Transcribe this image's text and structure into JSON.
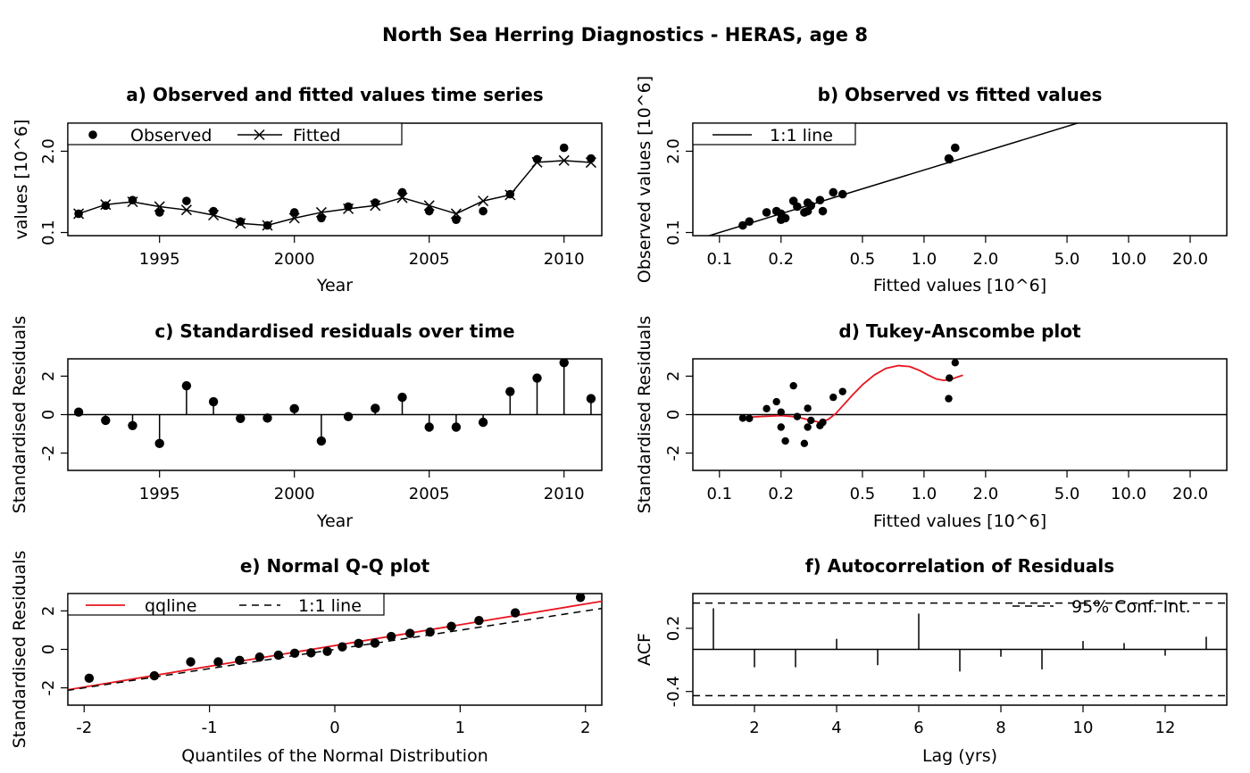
{
  "figure_title": "North Sea Herring Diagnostics - HERAS, age 8",
  "colors": {
    "red": "#e8141e",
    "black": "#000000"
  },
  "chart_data": [
    {
      "id": "a",
      "type": "line",
      "title": "a) Observed and fitted values time series",
      "xlabel": "Year",
      "ylabel": "values [10^6]",
      "xlim": [
        1991.6,
        2011.4
      ],
      "ylim_log10": [
        -1.05,
        0.75
      ],
      "y_scale": "log",
      "x_ticks": [
        1995,
        2000,
        2005,
        2010
      ],
      "x_tick_labels": [
        "1995",
        "2000",
        "2005",
        "2010"
      ],
      "y_ticks": [
        0.1,
        2.0
      ],
      "y_tick_labels": [
        "0.1",
        "2.0"
      ],
      "legend": {
        "position": "top-left",
        "entries": [
          "Observed",
          "Fitted"
        ]
      },
      "x": [
        1992,
        1993,
        1994,
        1995,
        1996,
        1997,
        1998,
        1999,
        2000,
        2001,
        2002,
        2003,
        2004,
        2005,
        2006,
        2007,
        2008,
        2009,
        2010,
        2011
      ],
      "series": [
        {
          "name": "Observed",
          "marker": "dot",
          "values": [
            0.2,
            0.27,
            0.33,
            0.21,
            0.32,
            0.22,
            0.15,
            0.13,
            0.21,
            0.17,
            0.26,
            0.3,
            0.44,
            0.22,
            0.16,
            0.22,
            0.41,
            1.49,
            2.27,
            1.53
          ]
        },
        {
          "name": "Fitted",
          "marker": "x",
          "values": [
            0.2,
            0.28,
            0.31,
            0.26,
            0.23,
            0.19,
            0.14,
            0.13,
            0.17,
            0.21,
            0.24,
            0.27,
            0.36,
            0.27,
            0.2,
            0.32,
            0.4,
            1.33,
            1.42,
            1.32
          ]
        }
      ]
    },
    {
      "id": "b",
      "type": "scatter",
      "title": "b) Observed vs fitted values",
      "xlabel": "Fitted values [10^6]",
      "ylabel": "Observed values [10^6]",
      "x_scale": "log",
      "y_scale": "log",
      "xlim_log10": [
        -1.13,
        1.48
      ],
      "ylim_log10": [
        -1.05,
        0.75
      ],
      "x_ticks": [
        0.1,
        0.2,
        0.5,
        1.0,
        2.0,
        5.0,
        10.0,
        20.0
      ],
      "x_tick_labels": [
        "0.1",
        "0.2",
        "0.5",
        "1.0",
        "2.0",
        "5.0",
        "10.0",
        "20.0"
      ],
      "y_ticks": [
        0.1,
        2.0
      ],
      "y_tick_labels": [
        "0.1",
        "2.0"
      ],
      "legend": {
        "position": "top-left",
        "entries": [
          "1:1 line"
        ]
      },
      "x": [
        0.2,
        0.28,
        0.31,
        0.26,
        0.23,
        0.19,
        0.14,
        0.13,
        0.17,
        0.21,
        0.24,
        0.27,
        0.36,
        0.27,
        0.2,
        0.32,
        0.4,
        1.33,
        1.42,
        1.32
      ],
      "y": [
        0.2,
        0.27,
        0.33,
        0.21,
        0.32,
        0.22,
        0.15,
        0.13,
        0.21,
        0.17,
        0.26,
        0.3,
        0.44,
        0.22,
        0.16,
        0.22,
        0.41,
        1.49,
        2.27,
        1.53
      ]
    },
    {
      "id": "c",
      "type": "bar",
      "title": "c) Standardised residuals over time",
      "xlabel": "Year",
      "ylabel": "Standardised Residuals",
      "xlim": [
        1991.6,
        2011.4
      ],
      "ylim": [
        -2.9,
        2.9
      ],
      "x_ticks": [
        1995,
        2000,
        2005,
        2010
      ],
      "x_tick_labels": [
        "1995",
        "2000",
        "2005",
        "2010"
      ],
      "y_ticks": [
        -2,
        0,
        2
      ],
      "y_tick_labels": [
        "-2",
        "0",
        "2"
      ],
      "x": [
        1992,
        1993,
        1994,
        1995,
        1996,
        1997,
        1998,
        1999,
        2000,
        2001,
        2002,
        2003,
        2004,
        2005,
        2006,
        2007,
        2008,
        2009,
        2010,
        2011
      ],
      "values": [
        0.13,
        -0.3,
        -0.57,
        -1.5,
        1.5,
        0.67,
        -0.2,
        -0.18,
        0.31,
        -1.37,
        -0.1,
        0.33,
        0.9,
        -0.65,
        -0.65,
        -0.4,
        1.2,
        1.9,
        2.7,
        0.83
      ]
    },
    {
      "id": "d",
      "type": "scatter",
      "title": "d) Tukey-Anscombe plot",
      "xlabel": "Fitted values [10^6]",
      "ylabel": "Standardised Residuals",
      "x_scale": "log",
      "xlim_log10": [
        -1.13,
        1.48
      ],
      "ylim": [
        -2.9,
        2.9
      ],
      "x_ticks": [
        0.1,
        0.2,
        0.5,
        1.0,
        2.0,
        5.0,
        10.0,
        20.0
      ],
      "x_tick_labels": [
        "0.1",
        "0.2",
        "0.5",
        "1.0",
        "2.0",
        "5.0",
        "10.0",
        "20.0"
      ],
      "y_ticks": [
        -2,
        0,
        2
      ],
      "y_tick_labels": [
        "-2",
        "0",
        "2"
      ],
      "x": [
        0.2,
        0.28,
        0.31,
        0.26,
        0.23,
        0.19,
        0.14,
        0.13,
        0.17,
        0.21,
        0.24,
        0.27,
        0.36,
        0.27,
        0.2,
        0.32,
        0.4,
        1.33,
        1.42,
        1.32
      ],
      "y": [
        0.13,
        -0.3,
        -0.57,
        -1.5,
        1.5,
        0.67,
        -0.2,
        -0.18,
        0.31,
        -1.37,
        -0.1,
        0.33,
        0.9,
        -0.65,
        -0.65,
        -0.4,
        1.2,
        1.9,
        2.7,
        0.83
      ],
      "smoother": {
        "x": [
          0.13,
          0.16,
          0.2,
          0.24,
          0.28,
          0.31,
          0.34,
          0.37,
          0.4,
          0.45,
          0.5,
          0.57,
          0.65,
          0.75,
          0.85,
          0.95,
          1.05,
          1.15,
          1.25,
          1.35,
          1.45,
          1.55
        ],
        "y": [
          -0.15,
          -0.1,
          -0.05,
          -0.12,
          -0.3,
          -0.4,
          -0.25,
          0.05,
          0.45,
          1.05,
          1.55,
          2.05,
          2.4,
          2.55,
          2.5,
          2.3,
          2.05,
          1.85,
          1.78,
          1.82,
          1.95,
          2.05
        ]
      }
    },
    {
      "id": "e",
      "type": "scatter",
      "title": "e) Normal Q-Q plot",
      "xlabel": "Quantiles of the Normal Distribution",
      "ylabel": "Standardised Residuals",
      "xlim": [
        -2.13,
        2.13
      ],
      "ylim": [
        -2.9,
        2.9
      ],
      "x_ticks": [
        -2,
        -1,
        0,
        1,
        2
      ],
      "x_tick_labels": [
        "-2",
        "-1",
        "0",
        "1",
        "2"
      ],
      "y_ticks": [
        -2,
        0,
        2
      ],
      "y_tick_labels": [
        "-2",
        "0",
        "2"
      ],
      "legend": {
        "position": "top-left",
        "entries": [
          "qqline",
          "1:1 line"
        ]
      },
      "x": [
        -1.96,
        -1.44,
        -1.15,
        -0.93,
        -0.76,
        -0.6,
        -0.45,
        -0.32,
        -0.19,
        -0.06,
        0.06,
        0.19,
        0.32,
        0.45,
        0.6,
        0.76,
        0.93,
        1.15,
        1.44,
        1.96
      ],
      "y": [
        -1.5,
        -1.37,
        -0.65,
        -0.65,
        -0.57,
        -0.4,
        -0.3,
        -0.2,
        -0.18,
        -0.1,
        0.13,
        0.31,
        0.33,
        0.67,
        0.83,
        0.9,
        1.2,
        1.5,
        1.9,
        2.7
      ],
      "qqline": {
        "intercept": 0.2,
        "slope": 1.08
      },
      "identity_line": {
        "intercept": 0.0,
        "slope": 1.0
      }
    },
    {
      "id": "f",
      "type": "bar",
      "title": "f) Autocorrelation of Residuals",
      "xlabel": "Lag (yrs)",
      "ylabel": "ACF",
      "xlim": [
        0.5,
        13.5
      ],
      "ylim": [
        -0.53,
        0.53
      ],
      "x_ticks": [
        2,
        4,
        6,
        8,
        10,
        12
      ],
      "x_tick_labels": [
        "2",
        "4",
        "6",
        "8",
        "10",
        "12"
      ],
      "y_ticks": [
        -0.4,
        0.2
      ],
      "y_tick_labels": [
        "-0.4",
        "0.2"
      ],
      "legend": {
        "position": "top-right",
        "entries": [
          "95% Conf. Int."
        ]
      },
      "confidence_interval": 0.44,
      "x": [
        1,
        2,
        3,
        4,
        5,
        6,
        7,
        8,
        9,
        10,
        11,
        12,
        13
      ],
      "values": [
        0.39,
        -0.17,
        -0.17,
        0.1,
        -0.15,
        0.34,
        -0.21,
        -0.07,
        -0.19,
        0.08,
        0.06,
        -0.06,
        0.12
      ]
    }
  ]
}
